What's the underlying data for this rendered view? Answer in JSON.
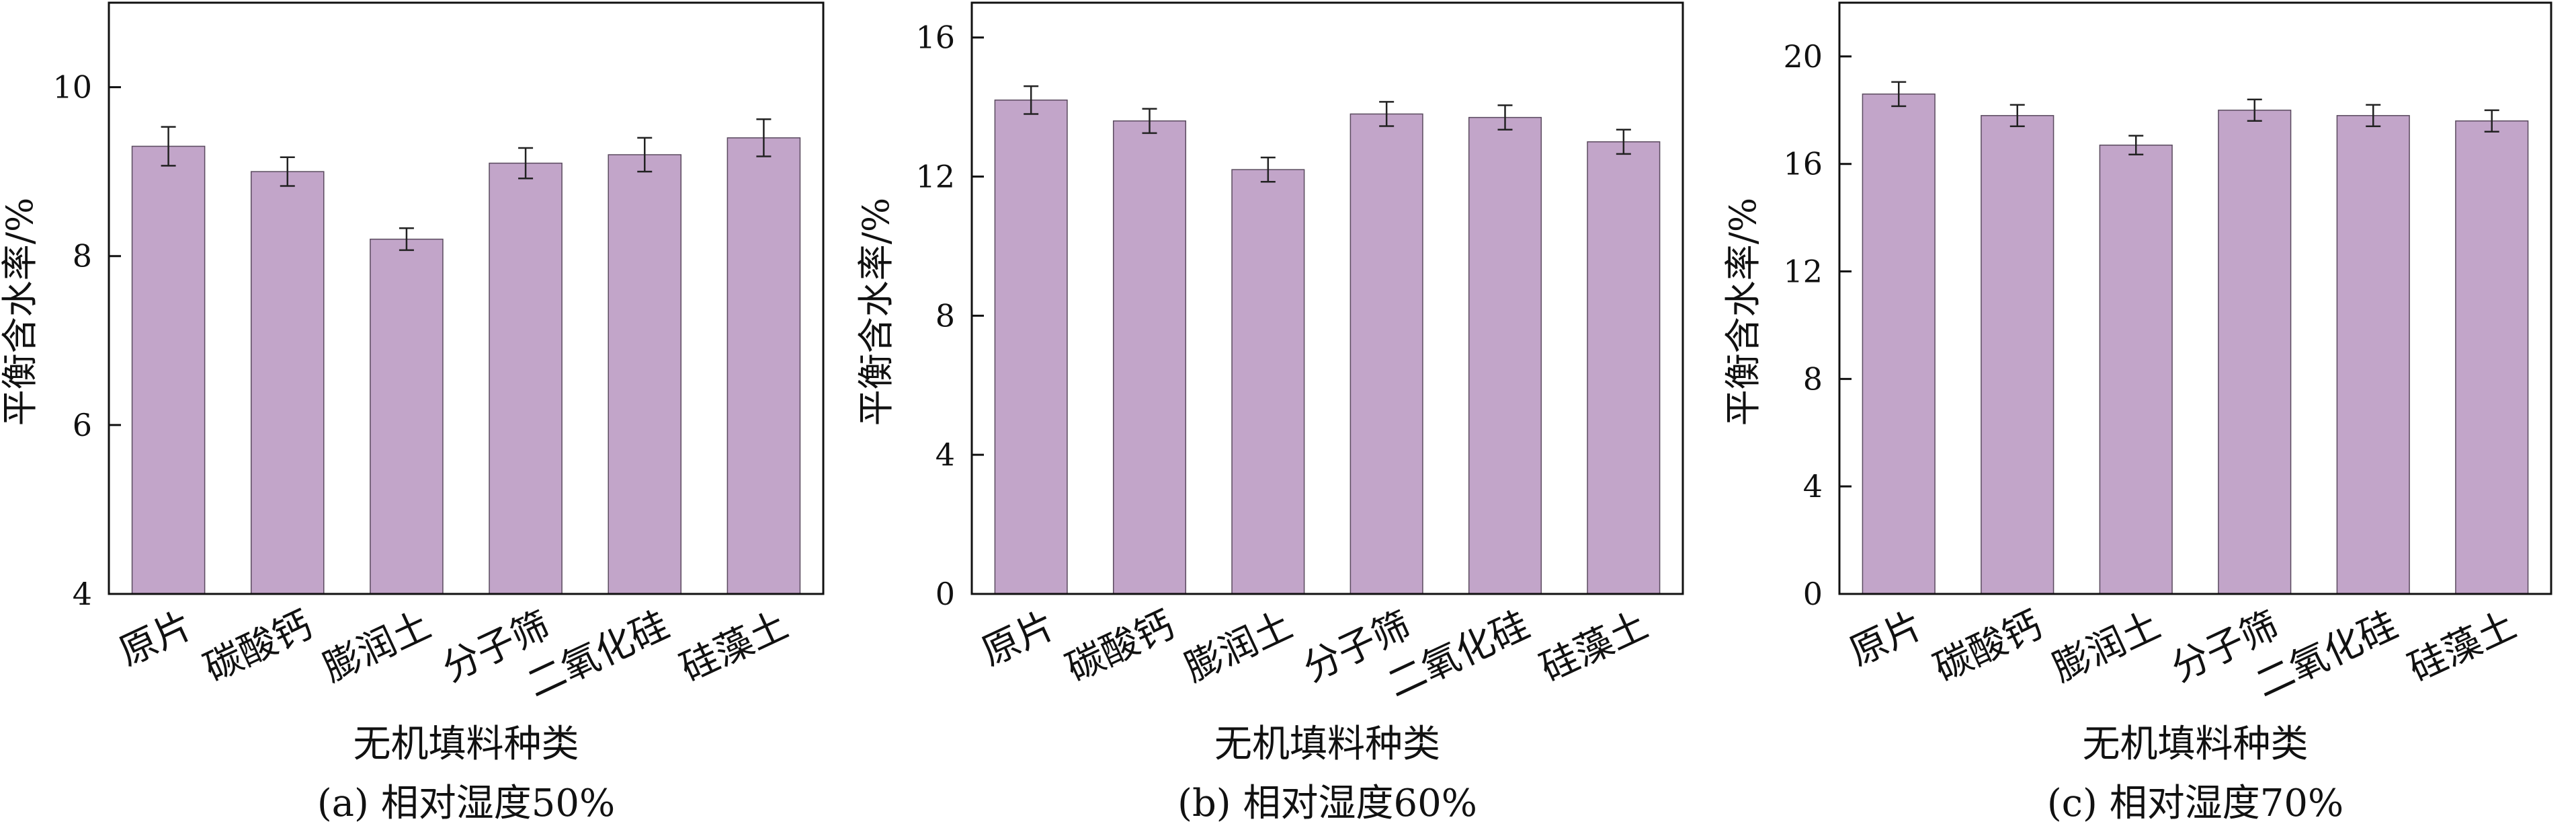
{
  "figure": {
    "bar_color": "#c2a5c9",
    "bar_stroke": "#5a4a5e",
    "axis_color": "#111111"
  },
  "chart_data": [
    {
      "type": "bar",
      "title": "(a) 相对湿度50%",
      "xlabel": "无机填料种类",
      "ylabel": "平衡含水率/%",
      "categories": [
        "原片",
        "碳酸钙",
        "膨润土",
        "分子筛",
        "二氧化硅",
        "硅藻土"
      ],
      "values": [
        9.3,
        9.0,
        8.2,
        9.1,
        9.2,
        9.4
      ],
      "errors": [
        0.23,
        0.17,
        0.13,
        0.18,
        0.2,
        0.22
      ],
      "ylim": [
        4,
        11
      ],
      "yticks": [
        4,
        6,
        8,
        10
      ],
      "grid": false
    },
    {
      "type": "bar",
      "title": "(b) 相对湿度60%",
      "xlabel": "无机填料种类",
      "ylabel": "平衡含水率/%",
      "categories": [
        "原片",
        "碳酸钙",
        "膨润土",
        "分子筛",
        "二氧化硅",
        "硅藻土"
      ],
      "values": [
        14.2,
        13.6,
        12.2,
        13.8,
        13.7,
        13.0
      ],
      "errors": [
        0.4,
        0.35,
        0.35,
        0.35,
        0.35,
        0.35
      ],
      "ylim": [
        0,
        17
      ],
      "yticks": [
        0,
        4,
        8,
        12,
        16
      ],
      "grid": false
    },
    {
      "type": "bar",
      "title": "(c) 相对湿度70%",
      "xlabel": "无机填料种类",
      "ylabel": "平衡含水率/%",
      "categories": [
        "原片",
        "碳酸钙",
        "膨润土",
        "分子筛",
        "二氧化硅",
        "硅藻土"
      ],
      "values": [
        18.6,
        17.8,
        16.7,
        18.0,
        17.8,
        17.6
      ],
      "errors": [
        0.45,
        0.4,
        0.35,
        0.4,
        0.4,
        0.4
      ],
      "ylim": [
        0,
        22
      ],
      "yticks": [
        0,
        4,
        8,
        12,
        16,
        20
      ],
      "grid": false
    }
  ]
}
